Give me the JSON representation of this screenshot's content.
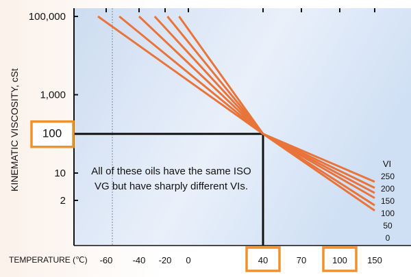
{
  "chart_data": {
    "type": "line",
    "ylabel": "KINEMATIC VISCOSITY, cSt",
    "xlabel": "TEMPERATURE (℃)",
    "y_scale": "log",
    "y_ticks": [
      {
        "value": 100000,
        "label": "100,000"
      },
      {
        "value": 1000,
        "label": "1,000"
      },
      {
        "value": 100,
        "label": "100"
      },
      {
        "value": 10,
        "label": "10"
      },
      {
        "value": 2,
        "label": "2"
      }
    ],
    "x_ticks": [
      {
        "value": -60,
        "label": "-60"
      },
      {
        "value": -40,
        "label": "-40"
      },
      {
        "value": -20,
        "label": "-20"
      },
      {
        "value": 0,
        "label": "0"
      },
      {
        "value": 40,
        "label": "40"
      },
      {
        "value": 70,
        "label": "70"
      },
      {
        "value": 100,
        "label": "100"
      },
      {
        "value": 150,
        "label": "150"
      }
    ],
    "reference_point": {
      "x": 40,
      "y": 100
    },
    "highlighted_tick_labels": [
      "100",
      "40"
    ],
    "legend_title": "VI",
    "series": [
      {
        "name": "250",
        "points": [
          [
            -8,
            100000
          ],
          [
            40,
            100
          ],
          [
            150,
            6
          ]
        ]
      },
      {
        "name": "200",
        "points": [
          [
            -18,
            100000
          ],
          [
            40,
            100
          ],
          [
            150,
            4.2
          ]
        ]
      },
      {
        "name": "150",
        "points": [
          [
            -28,
            100000
          ],
          [
            40,
            100
          ],
          [
            150,
            3.1
          ]
        ]
      },
      {
        "name": "100",
        "points": [
          [
            -40,
            100000
          ],
          [
            40,
            100
          ],
          [
            150,
            2.3
          ]
        ]
      },
      {
        "name": "50",
        "points": [
          [
            -52,
            100000
          ],
          [
            40,
            100
          ],
          [
            150,
            1.5
          ]
        ]
      },
      {
        "name": "0",
        "points": [
          [
            -65,
            100000
          ],
          [
            40,
            100
          ],
          [
            150,
            1.1
          ]
        ]
      }
    ],
    "annotation": "All of these oils have the same ISO VG but have sharply different VIs.",
    "colors": {
      "series": "#e8743b",
      "highlight": "#f0922c",
      "reference": "#111111",
      "plot_bg": "#d6e4f6"
    },
    "grid": false
  }
}
